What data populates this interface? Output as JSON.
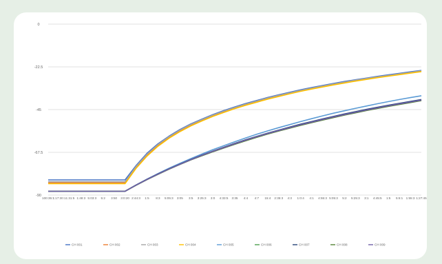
{
  "chart_data": {
    "type": "line",
    "title": "",
    "xlabel": "",
    "ylabel": "",
    "ylim": [
      -90,
      0
    ],
    "y_ticks": [
      "0",
      "-22.5",
      "-45",
      "-67.5",
      "-90"
    ],
    "y_tick_values": [
      0,
      -22.5,
      -45,
      -67.5,
      -90
    ],
    "grid": true,
    "legend_position": "bottom",
    "x_tick_labels": [
      "100:35:1",
      "1:17:30:1",
      "1:31:5",
      "1:48:3",
      "5:03:3",
      "5:2",
      "3:50",
      "3:0:20",
      "2:44:3",
      "1:5",
      "8:3",
      "5:05:3",
      "3:05",
      "3:5",
      "3:25:3",
      "3:0",
      "4:33:5",
      "3:35",
      "4:4",
      "4:7",
      "15:4",
      "2:35:3",
      "4:3",
      "1:0:4",
      "4:1",
      "4:55:3",
      "5:05:3",
      "5:2",
      "5:25:3",
      "3:1",
      "4:45:5",
      "1:5",
      "5:6:1",
      "1:55:3",
      "1:27:45"
    ],
    "x": [
      0,
      1,
      2,
      3,
      4,
      5,
      6,
      7,
      8,
      9,
      10,
      11,
      12,
      13,
      14,
      15,
      16,
      17,
      18,
      19,
      20,
      21,
      22,
      23,
      24,
      25,
      26,
      27,
      28,
      29,
      30,
      31,
      32,
      33,
      34
    ],
    "series": [
      {
        "name": "CH 001",
        "color": "#4472c4",
        "values": [
          -82,
          -82,
          -82,
          -82,
          -82,
          -82,
          -82,
          -82,
          -74.5,
          -68,
          -63,
          -59,
          -55.5,
          -52.5,
          -50,
          -47.6,
          -45.5,
          -43.6,
          -41.8,
          -40.2,
          -38.6,
          -37.2,
          -35.9,
          -34.6,
          -33.4,
          -32.3,
          -31.2,
          -30.2,
          -29.3,
          -28.4,
          -27.5,
          -26.7,
          -25.9,
          -25.1,
          -24.4
        ]
      },
      {
        "name": "CH 002",
        "color": "#ed7d31",
        "values": [
          -83.5,
          -83.5,
          -83.5,
          -83.5,
          -83.5,
          -83.5,
          -83.5,
          -83.5,
          -75.5,
          -69,
          -63.8,
          -59.7,
          -56.2,
          -53.2,
          -50.6,
          -48.2,
          -46.1,
          -44.2,
          -42.4,
          -40.8,
          -39.2,
          -37.8,
          -36.5,
          -35.2,
          -34,
          -32.9,
          -31.8,
          -30.8,
          -29.8,
          -28.9,
          -28,
          -27.2,
          -26.4,
          -25.6,
          -24.8
        ]
      },
      {
        "name": "CH 003",
        "color": "#a5a5a5",
        "values": [
          -83,
          -83,
          -83,
          -83,
          -83,
          -83,
          -83,
          -83,
          -75,
          -68.5,
          -63.4,
          -59.3,
          -55.8,
          -52.8,
          -50.3,
          -47.9,
          -45.8,
          -43.9,
          -42.1,
          -40.5,
          -38.9,
          -37.5,
          -36.2,
          -34.9,
          -33.7,
          -32.6,
          -31.5,
          -30.5,
          -29.5,
          -28.6,
          -27.8,
          -27,
          -26.2,
          -25.4,
          -24.6
        ]
      },
      {
        "name": "CH 004",
        "color": "#ffc000",
        "values": [
          -84,
          -84,
          -84,
          -84,
          -84,
          -84,
          -84,
          -84,
          -76,
          -69.5,
          -64.3,
          -60.1,
          -56.6,
          -53.6,
          -51,
          -48.6,
          -46.5,
          -44.5,
          -42.7,
          -41.1,
          -39.5,
          -38.1,
          -36.7,
          -35.4,
          -34.2,
          -33.1,
          -32,
          -31,
          -30,
          -29.1,
          -28.2,
          -27.4,
          -26.6,
          -25.8,
          -25
        ]
      },
      {
        "name": "CH 005",
        "color": "#5b9bd5",
        "values": [
          -88,
          -88,
          -88,
          -88,
          -88,
          -88,
          -88,
          -88,
          -84.7,
          -81.6,
          -78.7,
          -75.9,
          -73.3,
          -70.8,
          -68.4,
          -66.1,
          -64,
          -61.9,
          -59.9,
          -58,
          -56.2,
          -54.5,
          -52.9,
          -51.3,
          -49.8,
          -48.3,
          -46.9,
          -45.6,
          -44.3,
          -43.1,
          -41.9,
          -40.8,
          -39.7,
          -38.7,
          -37.7
        ]
      },
      {
        "name": "CH 006",
        "color": "#4ca050",
        "values": [
          -88,
          -88,
          -88,
          -88,
          -88,
          -88,
          -88,
          -88,
          -84.8,
          -81.8,
          -79,
          -76.3,
          -73.8,
          -71.4,
          -69.1,
          -67,
          -65,
          -63,
          -61.1,
          -59.3,
          -57.6,
          -56,
          -54.5,
          -53,
          -51.6,
          -50.2,
          -48.9,
          -47.6,
          -46.4,
          -45.2,
          -44.1,
          -43,
          -42,
          -41,
          -40
        ]
      },
      {
        "name": "CH 007",
        "color": "#264478",
        "values": [
          -88,
          -88,
          -88,
          -88,
          -88,
          -88,
          -88,
          -88,
          -84.7,
          -81.7,
          -78.9,
          -76.2,
          -73.7,
          -71.3,
          -69,
          -66.9,
          -64.8,
          -62.8,
          -60.9,
          -59.1,
          -57.4,
          -55.8,
          -54.2,
          -52.7,
          -51.3,
          -49.9,
          -48.6,
          -47.3,
          -46.1,
          -44.9,
          -43.8,
          -42.7,
          -41.7,
          -40.7,
          -39.7
        ]
      },
      {
        "name": "CH 008",
        "color": "#548235",
        "values": [
          -88,
          -88,
          -88,
          -88,
          -88,
          -88,
          -88,
          -88,
          -84.9,
          -81.9,
          -79.1,
          -76.4,
          -73.9,
          -71.5,
          -69.3,
          -67.2,
          -65.2,
          -63.3,
          -61.4,
          -59.6,
          -57.9,
          -56.3,
          -54.8,
          -53.3,
          -51.9,
          -50.5,
          -49.2,
          -47.9,
          -46.7,
          -45.5,
          -44.4,
          -43.3,
          -42.3,
          -41.3,
          -40.3
        ]
      },
      {
        "name": "CH 009",
        "color": "#7060a8",
        "values": [
          -88,
          -88,
          -88,
          -88,
          -88,
          -88,
          -88,
          -88,
          -84.8,
          -81.8,
          -79,
          -76.3,
          -73.8,
          -71.4,
          -69.1,
          -67,
          -65,
          -63,
          -61.1,
          -59.3,
          -57.6,
          -56,
          -54.5,
          -53,
          -51.6,
          -50.2,
          -48.9,
          -47.6,
          -46.4,
          -45.2,
          -44.1,
          -43,
          -42,
          -41,
          -40
        ]
      }
    ]
  }
}
